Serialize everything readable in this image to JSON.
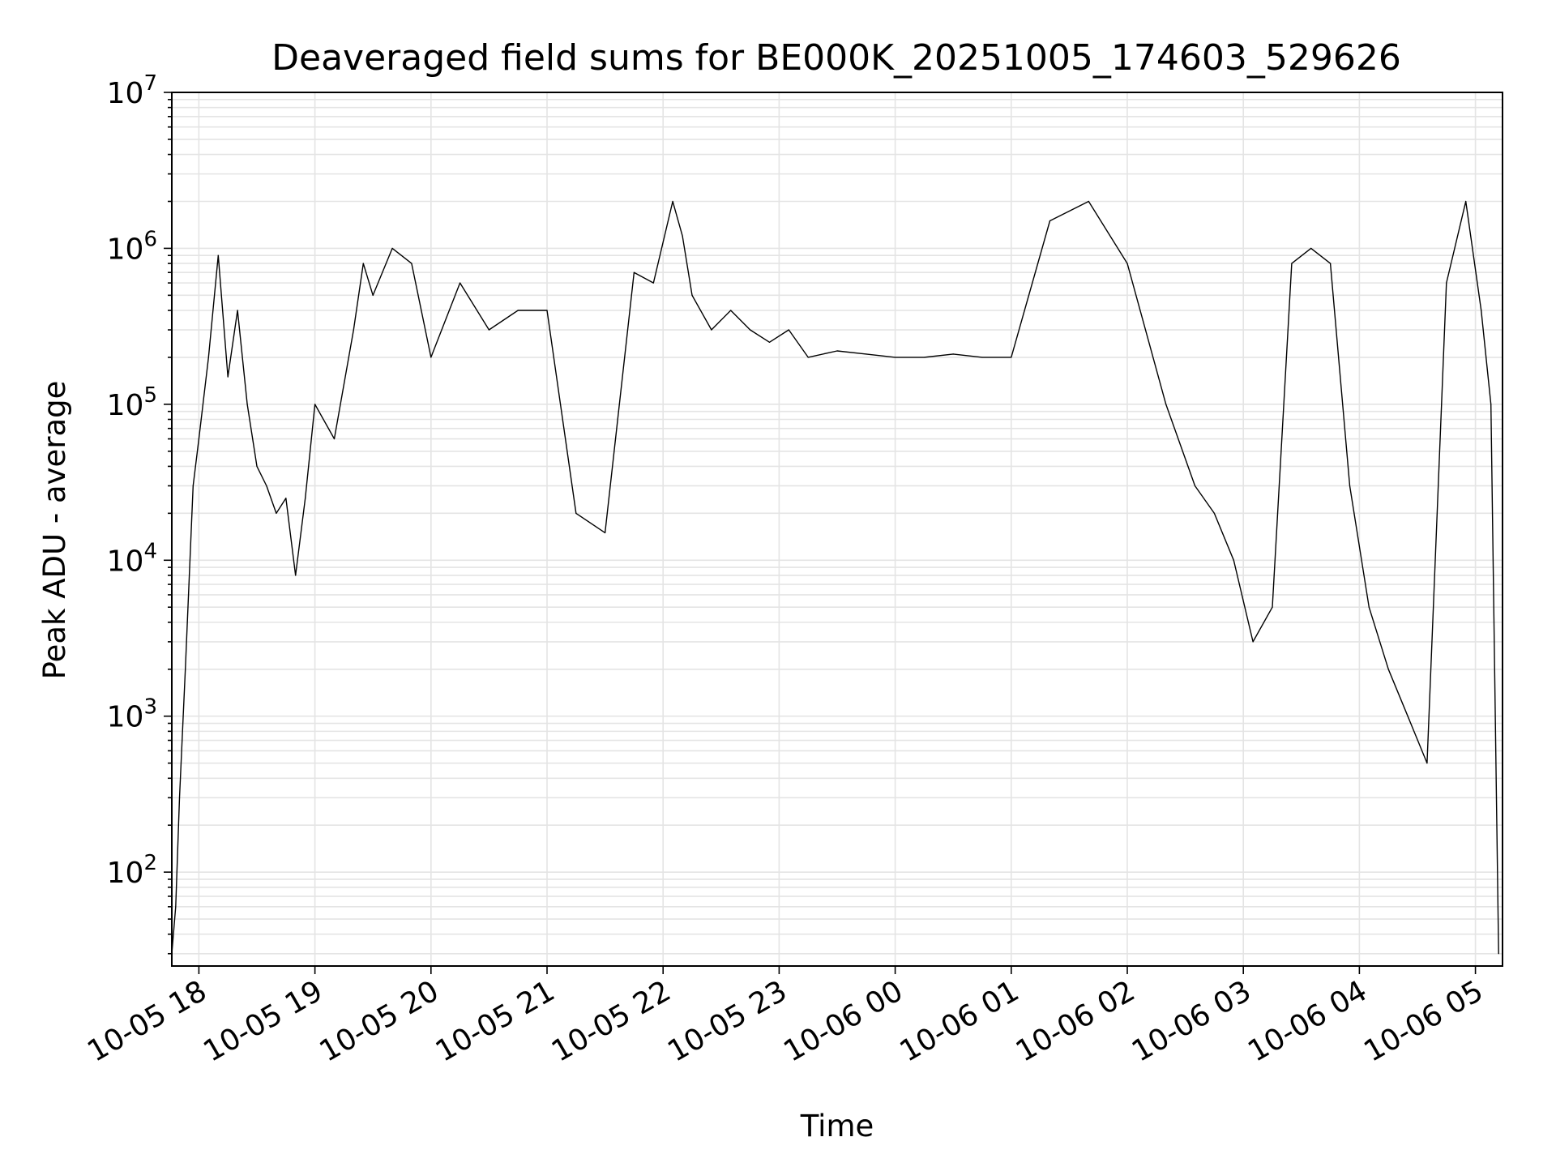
{
  "chart_data": {
    "type": "line",
    "title": "Deaveraged field sums for BE000K_20251005_174603_529626",
    "xlabel": "Time",
    "ylabel": "Peak ADU - average",
    "yscale": "log",
    "ylim": [
      25,
      10000000
    ],
    "xlim": [
      "2025-10-05 17:46",
      "2025-10-06 05:14"
    ],
    "grid": true,
    "legend": "none",
    "line_color": "#000000",
    "x_ticks": [
      "10-05 18",
      "10-05 19",
      "10-05 20",
      "10-05 21",
      "10-05 22",
      "10-05 23",
      "10-06 00",
      "10-06 01",
      "10-06 02",
      "10-06 03",
      "10-06 04",
      "10-06 05"
    ],
    "y_ticks": [
      {
        "value": 100,
        "base": "10",
        "exp": "2"
      },
      {
        "value": 1000,
        "base": "10",
        "exp": "3"
      },
      {
        "value": 10000,
        "base": "10",
        "exp": "4"
      },
      {
        "value": 100000,
        "base": "10",
        "exp": "5"
      },
      {
        "value": 1000000,
        "base": "10",
        "exp": "6"
      },
      {
        "value": 10000000,
        "base": "10",
        "exp": "7"
      }
    ],
    "series": [
      {
        "x": [
          "2025-10-05 17:46",
          "2025-10-05 17:48",
          "2025-10-05 17:50",
          "2025-10-05 17:53",
          "2025-10-05 17:57",
          "2025-10-05 18:00",
          "2025-10-05 18:05",
          "2025-10-05 18:10",
          "2025-10-05 18:15",
          "2025-10-05 18:20",
          "2025-10-05 18:25",
          "2025-10-05 18:30",
          "2025-10-05 18:35",
          "2025-10-05 18:40",
          "2025-10-05 18:45",
          "2025-10-05 18:50",
          "2025-10-05 18:55",
          "2025-10-05 19:00",
          "2025-10-05 19:10",
          "2025-10-05 19:20",
          "2025-10-05 19:25",
          "2025-10-05 19:30",
          "2025-10-05 19:40",
          "2025-10-05 19:50",
          "2025-10-05 20:00",
          "2025-10-05 20:15",
          "2025-10-05 20:30",
          "2025-10-05 20:45",
          "2025-10-05 21:00",
          "2025-10-05 21:15",
          "2025-10-05 21:30",
          "2025-10-05 21:45",
          "2025-10-05 21:55",
          "2025-10-05 22:05",
          "2025-10-05 22:10",
          "2025-10-05 22:15",
          "2025-10-05 22:25",
          "2025-10-05 22:35",
          "2025-10-05 22:45",
          "2025-10-05 22:55",
          "2025-10-05 23:05",
          "2025-10-05 23:15",
          "2025-10-05 23:30",
          "2025-10-05 23:45",
          "2025-10-06 00:00",
          "2025-10-06 00:15",
          "2025-10-06 00:30",
          "2025-10-06 00:45",
          "2025-10-06 01:00",
          "2025-10-06 01:20",
          "2025-10-06 01:40",
          "2025-10-06 02:00",
          "2025-10-06 02:20",
          "2025-10-06 02:35",
          "2025-10-06 02:45",
          "2025-10-06 02:55",
          "2025-10-06 03:05",
          "2025-10-06 03:15",
          "2025-10-06 03:25",
          "2025-10-06 03:35",
          "2025-10-06 03:45",
          "2025-10-06 03:55",
          "2025-10-06 04:05",
          "2025-10-06 04:15",
          "2025-10-06 04:25",
          "2025-10-06 04:35",
          "2025-10-06 04:45",
          "2025-10-06 04:55",
          "2025-10-06 05:03",
          "2025-10-06 05:08",
          "2025-10-06 05:12"
        ],
        "y": [
          30,
          60,
          300,
          2000,
          30000,
          60000,
          200000,
          900000,
          150000,
          400000,
          100000,
          40000,
          30000,
          20000,
          25000,
          8000,
          25000,
          100000,
          60000,
          300000,
          800000,
          500000,
          1000000,
          800000,
          200000,
          600000,
          300000,
          400000,
          400000,
          20000,
          15000,
          700000,
          600000,
          2000000,
          1200000,
          500000,
          300000,
          400000,
          300000,
          250000,
          300000,
          200000,
          220000,
          210000,
          200000,
          200000,
          210000,
          200000,
          200000,
          1500000,
          2000000,
          800000,
          100000,
          30000,
          20000,
          10000,
          3000,
          5000,
          800000,
          1000000,
          800000,
          30000,
          5000,
          2000,
          1000,
          500,
          600000,
          2000000,
          400000,
          100000,
          30
        ]
      }
    ]
  }
}
